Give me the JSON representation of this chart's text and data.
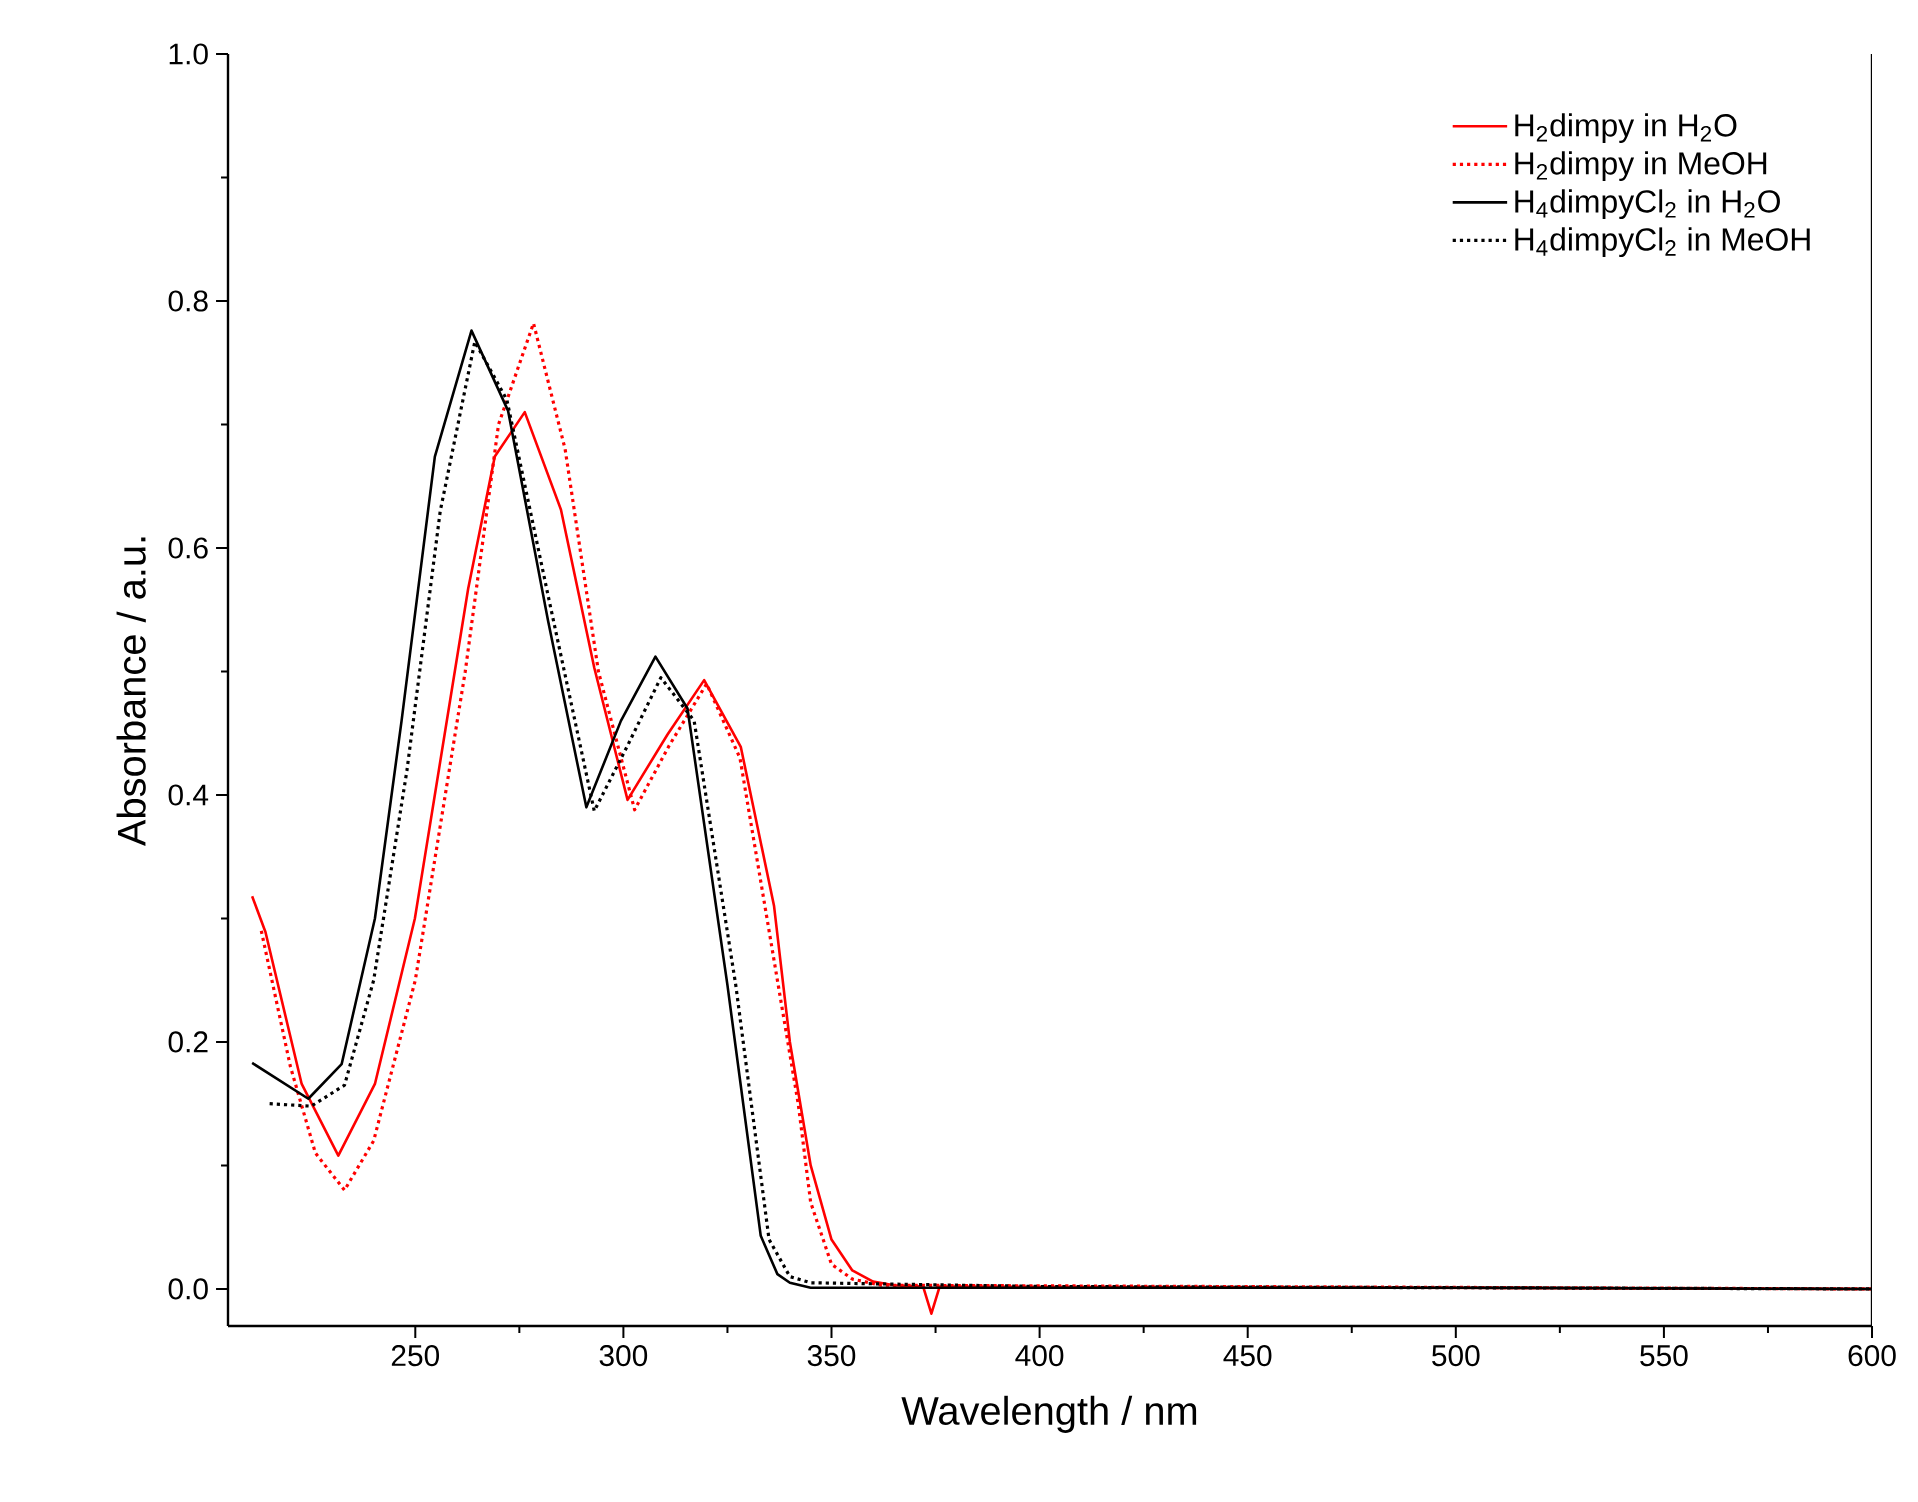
{
  "chart_data": {
    "type": "line",
    "xlabel": "Wavelength / nm",
    "ylabel": "Absorbance / a.u.",
    "xlim": [
      205,
      600
    ],
    "ylim": [
      -0.03,
      1.0
    ],
    "xticks": [
      250,
      300,
      350,
      400,
      450,
      500,
      550,
      600
    ],
    "yticks": [
      {
        "value": 0.0,
        "label": "0.0"
      },
      0.2,
      0.4,
      0.6,
      0.8,
      {
        "value": 1.0,
        "label": "1.0"
      }
    ],
    "legend": "top right",
    "grid": false,
    "marker": "none",
    "series": [
      {
        "name": "H$_{2}$dimpy in H$_{2}$O",
        "color": "#ff0000",
        "line_style": "solid",
        "x": [
          210.8,
          214,
          222.7,
          231.5,
          240.3,
          249.9,
          262.7,
          269.1,
          276.3,
          285,
          293,
          301,
          310.6,
          319.4,
          328.2,
          336.2,
          340,
          345,
          350,
          355,
          360,
          365,
          372,
          374,
          376,
          600
        ],
        "values": [
          0.318,
          0.289,
          0.166,
          0.108,
          0.166,
          0.3,
          0.567,
          0.674,
          0.71,
          0.631,
          0.503,
          0.396,
          0.449,
          0.493,
          0.439,
          0.31,
          0.2,
          0.1,
          0.04,
          0.015,
          0.006,
          0.003,
          0.002,
          -0.02,
          0.002,
          0.0
        ]
      },
      {
        "name": "H$_{2}$dimpy in MeOH",
        "color": "#ff0000",
        "line_style": "dotted",
        "x": [
          213,
          220,
          226,
          233,
          240,
          250,
          262,
          270,
          278.4,
          286,
          294,
          302.7,
          311,
          320,
          328,
          336,
          342,
          345,
          350,
          355,
          362,
          600
        ],
        "values": [
          0.29,
          0.18,
          0.11,
          0.08,
          0.12,
          0.25,
          0.5,
          0.7,
          0.782,
          0.68,
          0.5,
          0.388,
          0.44,
          0.49,
          0.43,
          0.27,
          0.15,
          0.07,
          0.02,
          0.008,
          0.003,
          0.0
        ]
      },
      {
        "name": "H$_{4}$dimpyCl$_{2}$ in H$_{2}$O",
        "color": "#000000",
        "line_style": "solid",
        "x": [
          210.8,
          224.3,
          232.3,
          240.3,
          246.7,
          254.7,
          263.5,
          272.3,
          281.9,
          291.1,
          299.4,
          307.7,
          315.4,
          325,
          333,
          337,
          340,
          345,
          400,
          500,
          600
        ],
        "values": [
          0.183,
          0.154,
          0.182,
          0.3,
          0.46,
          0.674,
          0.776,
          0.711,
          0.541,
          0.39,
          0.46,
          0.512,
          0.47,
          0.246,
          0.043,
          0.012,
          0.005,
          0.001,
          0.001,
          0.001,
          0.0
        ]
      },
      {
        "name": "H$_{4}$dimpyCl$_{2}$ in MeOH",
        "color": "#000000",
        "line_style": "dotted",
        "x": [
          215,
          225,
          233,
          240,
          248,
          256,
          264.3,
          272,
          282,
          293,
          301,
          309,
          317,
          327,
          335,
          340,
          345,
          400,
          500,
          600
        ],
        "values": [
          0.15,
          0.148,
          0.165,
          0.25,
          0.42,
          0.63,
          0.767,
          0.72,
          0.56,
          0.387,
          0.44,
          0.495,
          0.46,
          0.246,
          0.04,
          0.01,
          0.005,
          0.002,
          0.001,
          0.0
        ]
      }
    ]
  }
}
